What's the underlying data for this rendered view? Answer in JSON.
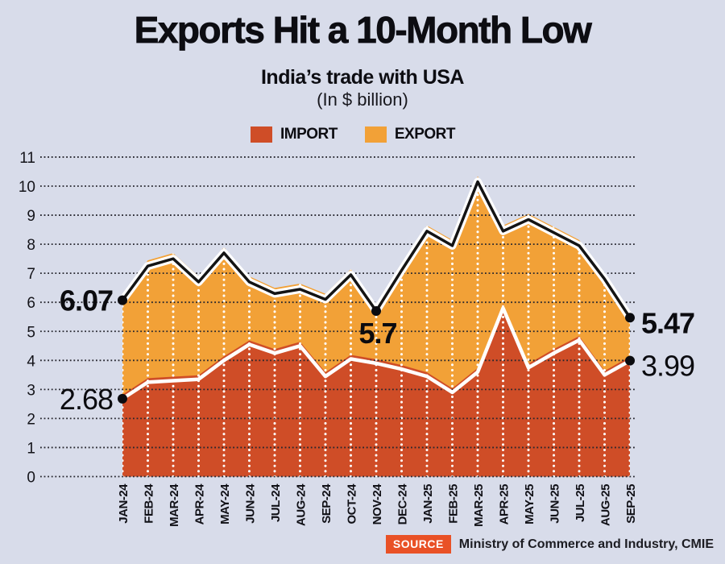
{
  "title": "Exports Hit a 10-Month Low",
  "subtitle": "India’s trade with USA",
  "unit_note": "(In $ billion)",
  "legend": [
    {
      "label": "IMPORT",
      "color": "#cf4d27"
    },
    {
      "label": "EXPORT",
      "color": "#f2a137"
    }
  ],
  "source": {
    "badge": "SOURCE",
    "text": "Ministry of Commerce and Industry, CMIE",
    "badge_color": "#e95126"
  },
  "colors": {
    "background": "#d8dcea",
    "export_area": "#f2a137",
    "import_area": "#cf4d27",
    "export_line": "#141414",
    "import_line": "#ffffff",
    "grid_horizontal": "#26262e",
    "grid_vertical": "#ffffff",
    "dot": "#0b0b0f"
  },
  "chart_data": {
    "type": "area",
    "title": "Exports Hit a 10-Month Low",
    "subtitle": "India’s trade with USA",
    "unit": "$ billion",
    "categories": [
      "JAN-24",
      "FEB-24",
      "MAR-24",
      "APR-24",
      "MAY-24",
      "JUN-24",
      "JUL-24",
      "AUG-24",
      "SEP-24",
      "OCT-24",
      "NOV-24",
      "DEC-24",
      "JAN-25",
      "FEB-25",
      "MAR-25",
      "APR-25",
      "MAY-25",
      "JUN-25",
      "JUL-25",
      "AUG-25",
      "SEP-25"
    ],
    "series": [
      {
        "name": "EXPORT",
        "color": "#f2a137",
        "values": [
          6.07,
          7.25,
          7.5,
          6.7,
          7.7,
          6.7,
          6.3,
          6.45,
          6.1,
          6.95,
          5.7,
          7.1,
          8.45,
          7.95,
          10.15,
          8.45,
          8.85,
          8.4,
          7.95,
          6.8,
          5.47
        ]
      },
      {
        "name": "IMPORT",
        "color": "#cf4d27",
        "values": [
          2.68,
          3.25,
          3.3,
          3.35,
          4.0,
          4.55,
          4.25,
          4.5,
          3.45,
          4.05,
          3.9,
          3.7,
          3.45,
          2.9,
          3.6,
          5.8,
          3.75,
          4.25,
          4.7,
          3.5,
          3.99
        ]
      }
    ],
    "ylim": [
      0,
      11
    ],
    "ytick_step": 1,
    "grid": true,
    "legend_position": "top",
    "annotations": [
      {
        "text": "6.07",
        "series": "EXPORT",
        "index": 0,
        "bold": true,
        "position": "left"
      },
      {
        "text": "2.68",
        "series": "IMPORT",
        "index": 0,
        "bold": false,
        "position": "left"
      },
      {
        "text": "5.7",
        "series": "EXPORT",
        "index": 10,
        "bold": true,
        "position": "below"
      },
      {
        "text": "5.47",
        "series": "EXPORT",
        "index": 20,
        "bold": true,
        "position": "right"
      },
      {
        "text": "3.99",
        "series": "IMPORT",
        "index": 20,
        "bold": false,
        "position": "right"
      }
    ]
  }
}
